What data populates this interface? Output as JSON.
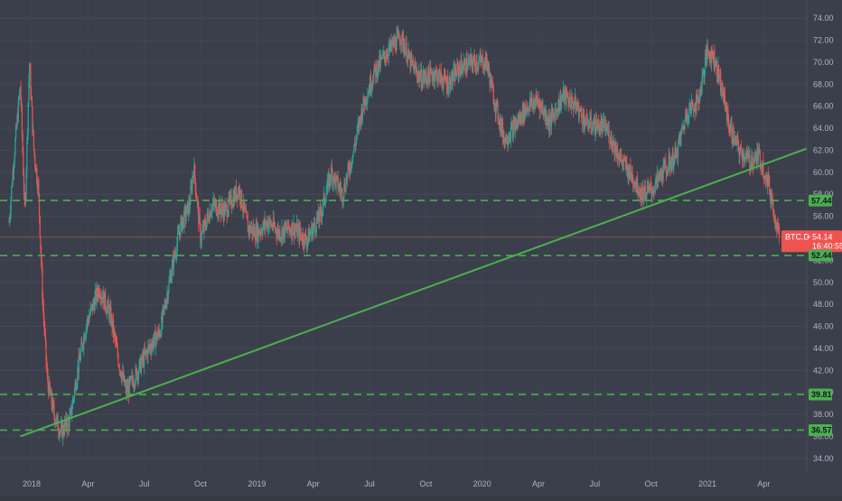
{
  "chart_data": {
    "type": "candlestick",
    "symbol": "BTC.D",
    "colors": {
      "background": "#3b3f4b",
      "up": "#26a69a",
      "down": "#ef5350",
      "trendline": "#4caf50",
      "level_line": "#4caf50",
      "level_badge": "#4caf50",
      "price_badge": "#ef5350"
    },
    "y_axis": {
      "range": [
        33,
        75
      ],
      "ticks": [
        "34.00",
        "36.00",
        "38.00",
        "40.00",
        "42.00",
        "44.00",
        "46.00",
        "48.00",
        "50.00",
        "52.00",
        "54.00",
        "56.00",
        "58.00",
        "60.00",
        "62.00",
        "64.00",
        "66.00",
        "68.00",
        "70.00",
        "72.00",
        "74.00"
      ]
    },
    "x_axis": {
      "ticks": [
        {
          "label": "2018",
          "t": 2018.0
        },
        {
          "label": "Apr",
          "t": 2018.25
        },
        {
          "label": "Jul",
          "t": 2018.5
        },
        {
          "label": "Oct",
          "t": 2018.75
        },
        {
          "label": "2019",
          "t": 2019.0
        },
        {
          "label": "Apr",
          "t": 2019.25
        },
        {
          "label": "Jul",
          "t": 2019.5
        },
        {
          "label": "Oct",
          "t": 2019.75
        },
        {
          "label": "2020",
          "t": 2020.0
        },
        {
          "label": "Apr",
          "t": 2020.25
        },
        {
          "label": "Jul",
          "t": 2020.5
        },
        {
          "label": "Oct",
          "t": 2020.75
        },
        {
          "label": "2021",
          "t": 2021.0
        },
        {
          "label": "Apr",
          "t": 2021.25
        }
      ]
    },
    "keypoints": [
      [
        2017.9,
        55.5
      ],
      [
        2017.92,
        61.0
      ],
      [
        2017.95,
        68.0
      ],
      [
        2017.97,
        56.0
      ],
      [
        2017.99,
        70.0
      ],
      [
        2018.01,
        62.0
      ],
      [
        2018.03,
        58.5
      ],
      [
        2018.05,
        48.0
      ],
      [
        2018.07,
        41.0
      ],
      [
        2018.1,
        38.0
      ],
      [
        2018.13,
        36.4
      ],
      [
        2018.17,
        37.5
      ],
      [
        2018.2,
        41.5
      ],
      [
        2018.24,
        46.0
      ],
      [
        2018.3,
        49.5
      ],
      [
        2018.35,
        47.0
      ],
      [
        2018.39,
        42.5
      ],
      [
        2018.42,
        40.0
      ],
      [
        2018.46,
        41.5
      ],
      [
        2018.52,
        44.0
      ],
      [
        2018.57,
        45.5
      ],
      [
        2018.62,
        51.0
      ],
      [
        2018.66,
        55.0
      ],
      [
        2018.7,
        57.0
      ],
      [
        2018.72,
        60.5
      ],
      [
        2018.75,
        54.0
      ],
      [
        2018.8,
        57.0
      ],
      [
        2018.86,
        56.5
      ],
      [
        2018.92,
        58.5
      ],
      [
        2018.96,
        55.0
      ],
      [
        2019.0,
        54.5
      ],
      [
        2019.05,
        55.5
      ],
      [
        2019.1,
        54.5
      ],
      [
        2019.16,
        55.0
      ],
      [
        2019.22,
        53.8
      ],
      [
        2019.28,
        56.0
      ],
      [
        2019.33,
        60.0
      ],
      [
        2019.38,
        58.0
      ],
      [
        2019.43,
        62.0
      ],
      [
        2019.47,
        66.0
      ],
      [
        2019.52,
        69.0
      ],
      [
        2019.58,
        71.0
      ],
      [
        2019.64,
        72.3
      ],
      [
        2019.68,
        70.0
      ],
      [
        2019.73,
        68.5
      ],
      [
        2019.79,
        69.0
      ],
      [
        2019.85,
        68.0
      ],
      [
        2019.9,
        69.5
      ],
      [
        2019.96,
        70.0
      ],
      [
        2020.02,
        70.0
      ],
      [
        2020.06,
        66.0
      ],
      [
        2020.1,
        63.0
      ],
      [
        2020.14,
        64.0
      ],
      [
        2020.2,
        66.0
      ],
      [
        2020.25,
        66.5
      ],
      [
        2020.3,
        64.5
      ],
      [
        2020.36,
        67.0
      ],
      [
        2020.42,
        66.0
      ],
      [
        2020.46,
        64.5
      ],
      [
        2020.55,
        64.0
      ],
      [
        2020.62,
        61.0
      ],
      [
        2020.67,
        59.5
      ],
      [
        2020.71,
        58.0
      ],
      [
        2020.76,
        58.5
      ],
      [
        2020.8,
        60.0
      ],
      [
        2020.86,
        61.5
      ],
      [
        2020.91,
        65.5
      ],
      [
        2020.96,
        66.5
      ],
      [
        2021.0,
        71.0
      ],
      [
        2021.03,
        70.5
      ],
      [
        2021.06,
        68.0
      ],
      [
        2021.1,
        64.0
      ],
      [
        2021.14,
        62.0
      ],
      [
        2021.19,
        61.0
      ],
      [
        2021.23,
        61.5
      ],
      [
        2021.27,
        59.0
      ],
      [
        2021.32,
        54.14
      ]
    ],
    "trendline": {
      "t0": 2017.95,
      "v0": 36.0,
      "t1": 2021.5,
      "v1": 62.6
    },
    "levels": [
      57.44,
      52.44,
      39.81,
      36.57
    ],
    "level_labels": [
      "57.44",
      "52.44",
      "39.81",
      "36.57"
    ],
    "last_price": 54.14,
    "last_price_label": "54.14",
    "countdown": "16:40:55"
  }
}
